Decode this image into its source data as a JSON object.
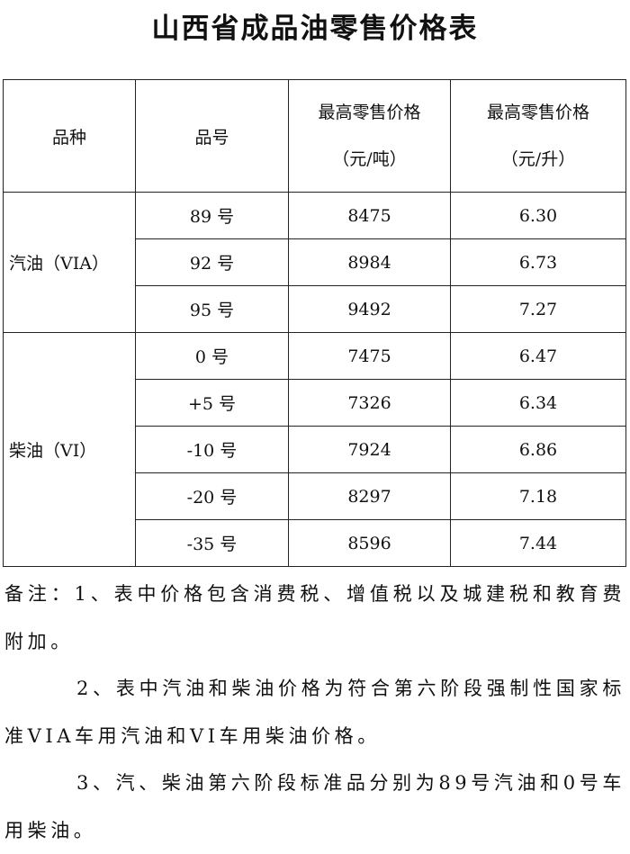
{
  "title": "山西省成品油零售价格表",
  "table": {
    "headers": {
      "variety": "品种",
      "grade": "品号",
      "price_ton_line1": "最高零售价格",
      "price_ton_line2": "（元/吨）",
      "price_liter_line1": "最高零售价格",
      "price_liter_line2": "（元/升）"
    },
    "groups": [
      {
        "name": "汽油（VIA）",
        "rows": [
          {
            "grade": "89 号",
            "ton": "8475",
            "liter": "6.30"
          },
          {
            "grade": "92 号",
            "ton": "8984",
            "liter": "6.73"
          },
          {
            "grade": "95 号",
            "ton": "9492",
            "liter": "7.27"
          }
        ]
      },
      {
        "name": "柴油（VI）",
        "rows": [
          {
            "grade": "0 号",
            "ton": "7475",
            "liter": "6.47"
          },
          {
            "grade": "+5 号",
            "ton": "7326",
            "liter": "6.34"
          },
          {
            "grade": "-10 号",
            "ton": "7924",
            "liter": "6.86"
          },
          {
            "grade": "-20 号",
            "ton": "8297",
            "liter": "7.18"
          },
          {
            "grade": "-35 号",
            "ton": "8596",
            "liter": "7.44"
          }
        ]
      }
    ]
  },
  "notes": [
    "备注：1、表中价格包含消费税、增值税以及城建税和教育费附加。",
    "2、表中汽油和柴油价格为符合第六阶段强制性国家标准VIA车用汽油和VI车用柴油价格。",
    "3、汽、柴油第六阶段标准品分别为89号汽油和0号车用柴油。"
  ]
}
